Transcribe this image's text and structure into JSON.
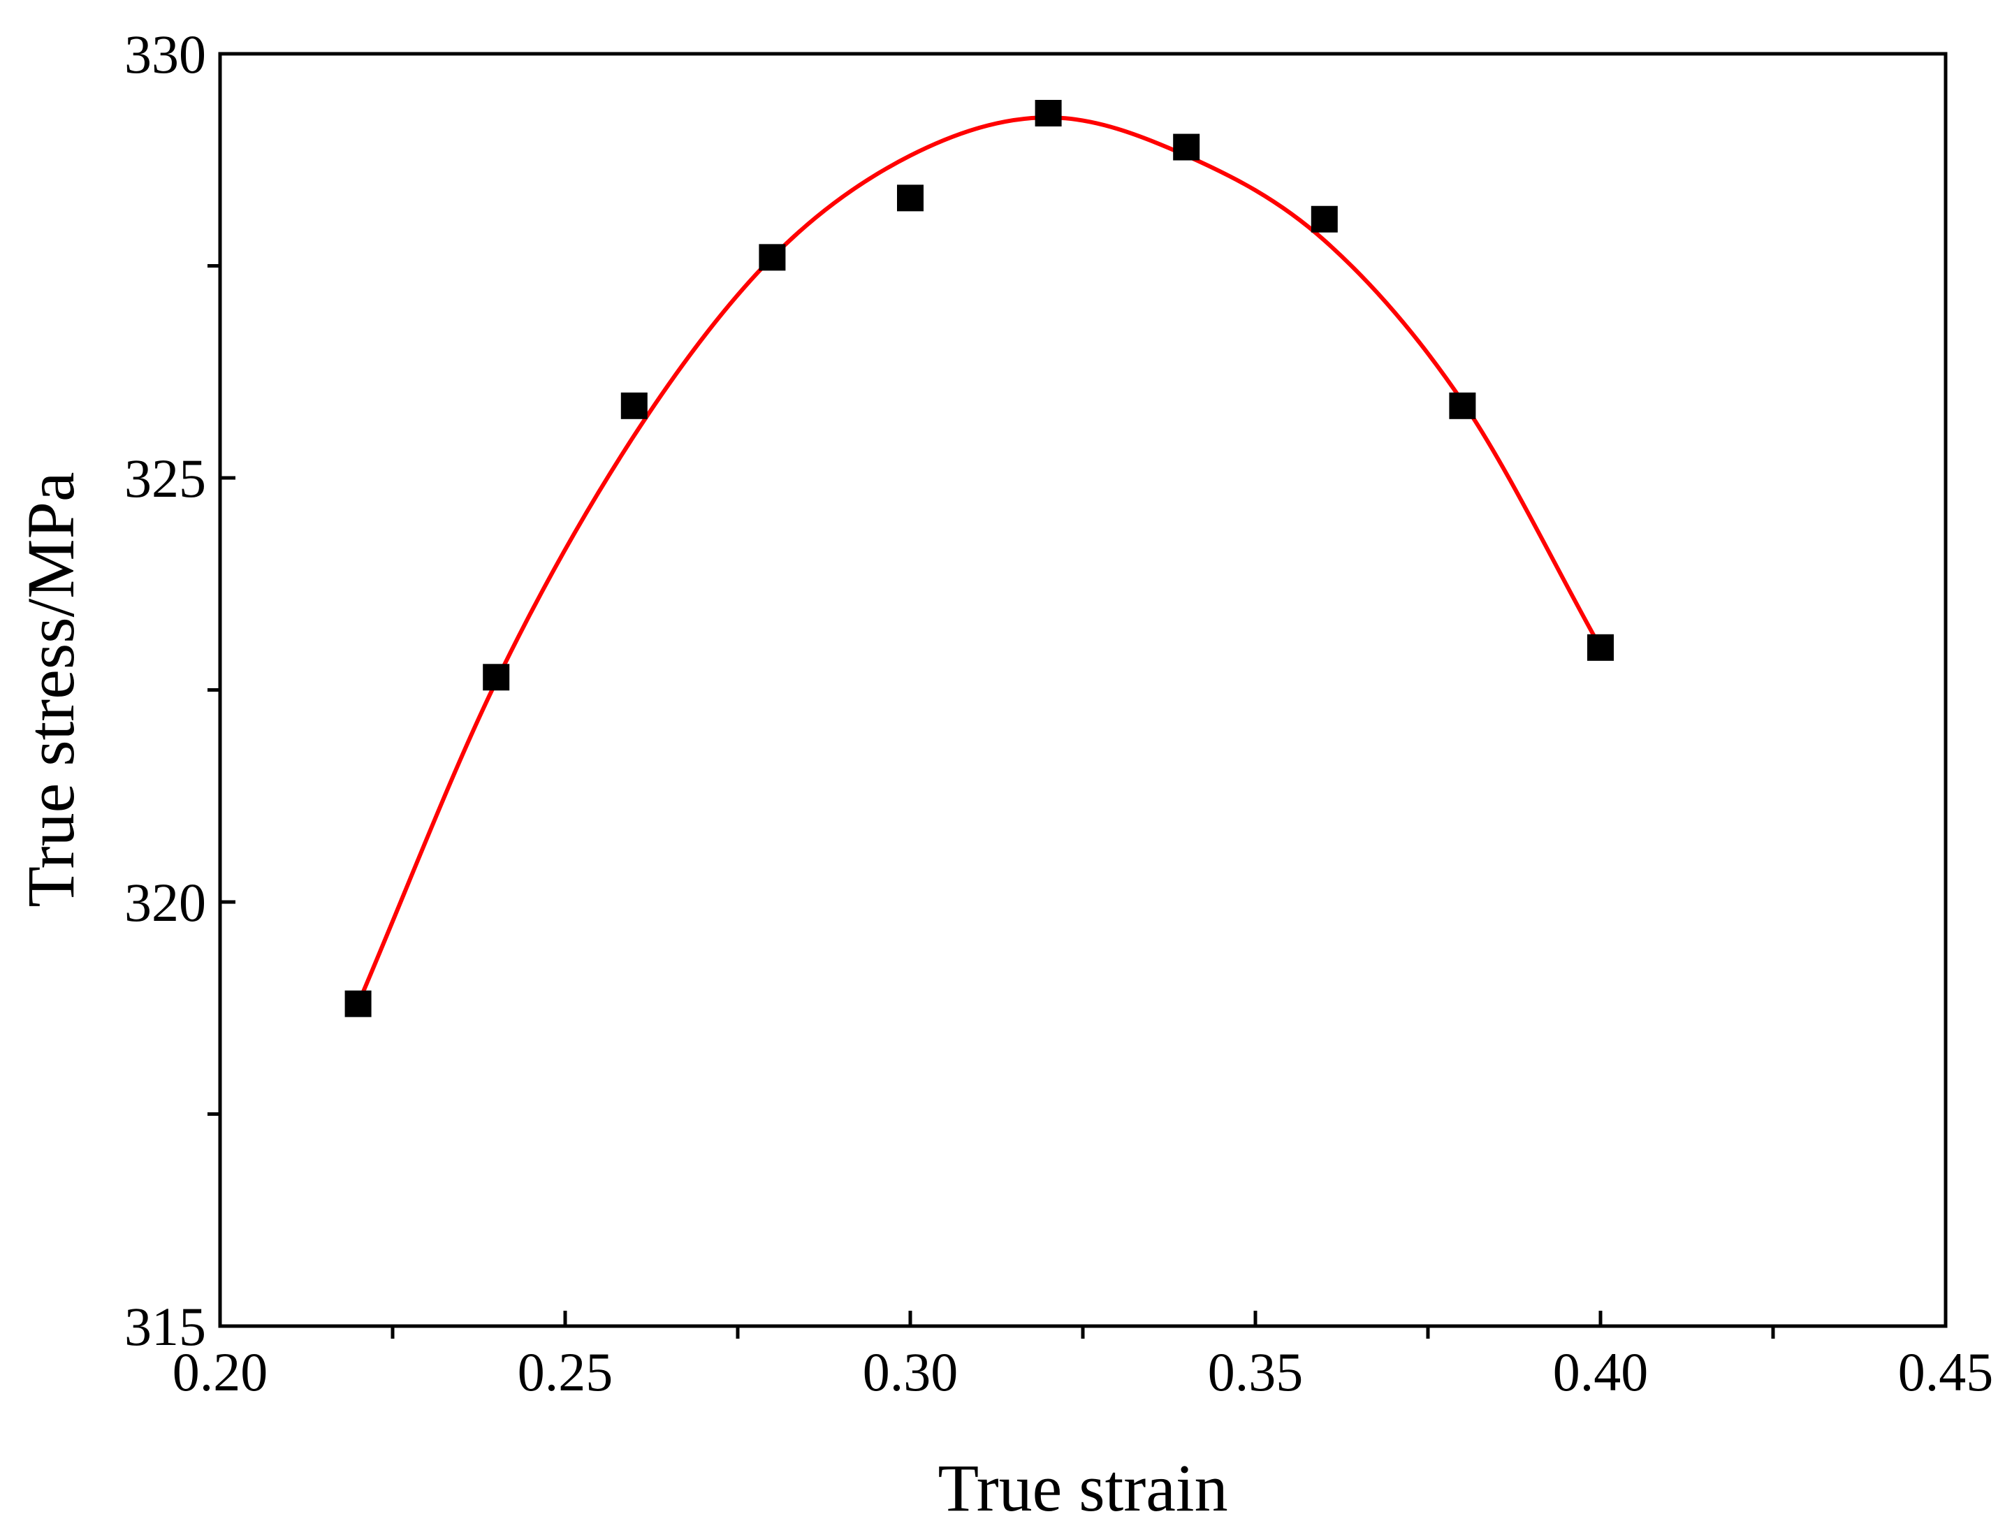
{
  "chart_data": {
    "type": "scatter",
    "title": "",
    "xlabel": "True strain",
    "ylabel": "True stress/MPa",
    "xlim": [
      0.2,
      0.45
    ],
    "ylim": [
      315,
      330
    ],
    "x_ticks": [
      "0.20",
      "0.25",
      "0.30",
      "0.35",
      "0.40",
      "0.45"
    ],
    "x_tick_values": [
      0.2,
      0.25,
      0.3,
      0.35,
      0.4,
      0.45
    ],
    "x_minor_tick_values": [
      0.225,
      0.275,
      0.325,
      0.375,
      0.425
    ],
    "y_ticks": [
      "315",
      "320",
      "325",
      "330"
    ],
    "y_tick_values": [
      315,
      320,
      325,
      330
    ],
    "y_minor_tick_values": [
      317.5,
      322.5,
      327.5
    ],
    "grid": false,
    "legend": "none",
    "series": [
      {
        "marker": "square",
        "color": "#000000",
        "x": [
          0.22,
          0.24,
          0.26,
          0.28,
          0.3,
          0.32,
          0.34,
          0.36,
          0.38,
          0.4
        ],
        "y": [
          318.8,
          322.65,
          325.85,
          327.6,
          328.3,
          329.3,
          328.9,
          328.05,
          325.85,
          323.0
        ]
      },
      {
        "style": "fit-curve",
        "color": "#ff0000",
        "x_range": [
          0.22,
          0.4
        ],
        "peak": [
          0.322,
          329.25
        ],
        "x": [
          0.22,
          0.24,
          0.26,
          0.28,
          0.3,
          0.32,
          0.34,
          0.36,
          0.38,
          0.4
        ],
        "y": [
          318.8,
          322.6,
          325.5,
          327.6,
          328.8,
          329.25,
          328.8,
          327.8,
          325.9,
          323.0
        ]
      }
    ]
  }
}
